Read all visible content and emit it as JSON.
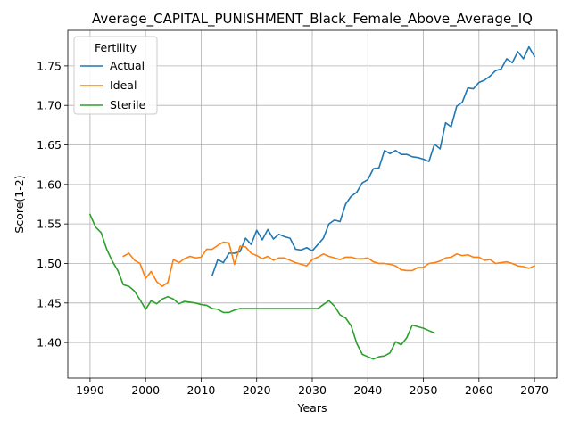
{
  "chart_data": {
    "type": "line",
    "title": "Average_CAPITAL_PUNISHMENT_Black_Female_Above_Average_IQ",
    "xlabel": "Years",
    "ylabel": "Score(1-2)",
    "xlim": [
      1986,
      2074
    ],
    "ylim": [
      1.355,
      1.795
    ],
    "xticks": [
      1990,
      2000,
      2010,
      2020,
      2030,
      2040,
      2050,
      2060,
      2070
    ],
    "yticks": [
      1.4,
      1.45,
      1.5,
      1.55,
      1.6,
      1.65,
      1.7,
      1.75
    ],
    "grid": true,
    "legend": {
      "title": "Fertility",
      "placement": "top-left"
    },
    "series": [
      {
        "name": "Actual",
        "color": "#1f77b4",
        "x": [
          2012,
          2013,
          2014,
          2015,
          2016,
          2017,
          2018,
          2019,
          2020,
          2021,
          2022,
          2023,
          2024,
          2025,
          2026,
          2027,
          2028,
          2029,
          2030,
          2031,
          2032,
          2033,
          2034,
          2035,
          2036,
          2037,
          2038,
          2039,
          2040,
          2041,
          2042,
          2043,
          2044,
          2045,
          2046,
          2047,
          2048,
          2049,
          2050,
          2051,
          2052,
          2053,
          2054,
          2055,
          2056,
          2057,
          2058,
          2059,
          2060,
          2061,
          2062,
          2063,
          2064,
          2065,
          2066,
          2067,
          2068,
          2069,
          2070
        ],
        "y": [
          1.485,
          1.505,
          1.501,
          1.513,
          1.513,
          1.515,
          1.532,
          1.524,
          1.542,
          1.53,
          1.543,
          1.531,
          1.537,
          1.534,
          1.532,
          1.518,
          1.517,
          1.52,
          1.516,
          1.524,
          1.532,
          1.55,
          1.555,
          1.553,
          1.575,
          1.585,
          1.59,
          1.602,
          1.606,
          1.62,
          1.621,
          1.643,
          1.639,
          1.643,
          1.638,
          1.638,
          1.635,
          1.634,
          1.632,
          1.629,
          1.651,
          1.645,
          1.678,
          1.673,
          1.699,
          1.704,
          1.722,
          1.721,
          1.729,
          1.732,
          1.737,
          1.744,
          1.746,
          1.759,
          1.754,
          1.768,
          1.759,
          1.774,
          1.762
        ]
      },
      {
        "name": "Ideal",
        "color": "#ff7f0e",
        "x": [
          1996,
          1997,
          1998,
          1999,
          2000,
          2001,
          2002,
          2003,
          2004,
          2005,
          2006,
          2007,
          2008,
          2009,
          2010,
          2011,
          2012,
          2013,
          2014,
          2015,
          2016,
          2017,
          2018,
          2019,
          2020,
          2021,
          2022,
          2023,
          2024,
          2025,
          2026,
          2027,
          2028,
          2029,
          2030,
          2031,
          2032,
          2033,
          2034,
          2035,
          2036,
          2037,
          2038,
          2039,
          2040,
          2041,
          2042,
          2043,
          2044,
          2045,
          2046,
          2047,
          2048,
          2049,
          2050,
          2051,
          2052,
          2053,
          2054,
          2055,
          2056,
          2057,
          2058,
          2059,
          2060,
          2061,
          2062,
          2063,
          2064,
          2065,
          2066,
          2067,
          2068,
          2069,
          2070
        ],
        "y": [
          1.509,
          1.513,
          1.504,
          1.5,
          1.481,
          1.49,
          1.477,
          1.471,
          1.476,
          1.505,
          1.501,
          1.506,
          1.509,
          1.507,
          1.508,
          1.518,
          1.518,
          1.523,
          1.527,
          1.526,
          1.499,
          1.522,
          1.521,
          1.513,
          1.51,
          1.506,
          1.509,
          1.504,
          1.507,
          1.507,
          1.504,
          1.501,
          1.499,
          1.497,
          1.505,
          1.508,
          1.512,
          1.509,
          1.507,
          1.505,
          1.508,
          1.508,
          1.506,
          1.506,
          1.507,
          1.502,
          1.5,
          1.5,
          1.499,
          1.497,
          1.492,
          1.491,
          1.491,
          1.495,
          1.495,
          1.5,
          1.501,
          1.503,
          1.507,
          1.508,
          1.512,
          1.51,
          1.511,
          1.508,
          1.508,
          1.504,
          1.505,
          1.5,
          1.501,
          1.502,
          1.5,
          1.497,
          1.496,
          1.494,
          1.497
        ]
      },
      {
        "name": "Sterile",
        "color": "#2ca02c",
        "x": [
          1990,
          1991,
          1992,
          1993,
          1994,
          1995,
          1996,
          1997,
          1998,
          1999,
          2000,
          2001,
          2002,
          2003,
          2004,
          2005,
          2006,
          2007,
          2008,
          2009,
          2010,
          2011,
          2012,
          2013,
          2014,
          2015,
          2016,
          2017,
          2018,
          2019,
          2020,
          2021,
          2022,
          2023,
          2024,
          2025,
          2026,
          2027,
          2028,
          2029,
          2030,
          2031,
          2032,
          2033,
          2034,
          2035,
          2036,
          2037,
          2038,
          2039,
          2040,
          2041,
          2042,
          2043,
          2044,
          2045,
          2046,
          2047,
          2048,
          2049,
          2050,
          2051,
          2052
        ],
        "y": [
          1.562,
          1.546,
          1.539,
          1.518,
          1.503,
          1.491,
          1.473,
          1.471,
          1.465,
          1.454,
          1.442,
          1.453,
          1.449,
          1.455,
          1.458,
          1.455,
          1.449,
          1.452,
          1.451,
          1.45,
          1.448,
          1.447,
          1.443,
          1.442,
          1.438,
          1.438,
          1.441,
          1.443,
          1.443,
          1.443,
          1.443,
          1.443,
          1.443,
          1.443,
          1.443,
          1.443,
          1.443,
          1.443,
          1.443,
          1.443,
          1.443,
          1.443,
          1.448,
          1.453,
          1.446,
          1.435,
          1.431,
          1.421,
          1.399,
          1.385,
          1.382,
          1.379,
          1.382,
          1.383,
          1.387,
          1.401,
          1.397,
          1.406,
          1.422,
          1.42,
          1.418,
          1.415,
          1.412
        ]
      }
    ]
  }
}
